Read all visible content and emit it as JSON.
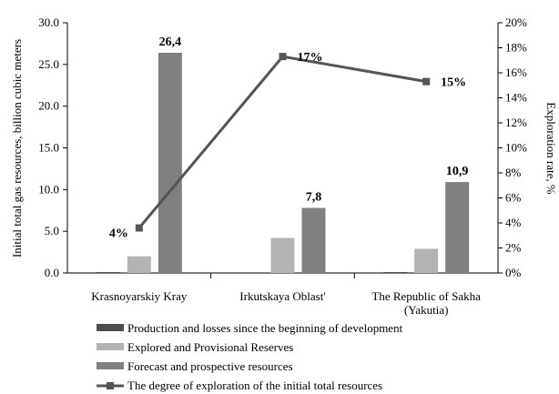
{
  "chart_data": {
    "type": "bar+line",
    "categories": [
      "Krasnoyarskiy Kray",
      "Irkutskaya Oblast'",
      "The Republic of Sakha (Yakutia)"
    ],
    "ylabel": "Initial total gas resources, billion cubic meters",
    "y2label": "Exploration rate, %",
    "ylim": [
      0,
      30
    ],
    "y_ticks": [
      "0.0",
      "5.0",
      "10.0",
      "15.0",
      "20.0",
      "25.0",
      "30.0"
    ],
    "y2lim": [
      0,
      20
    ],
    "y2_ticks": [
      "0%",
      "2%",
      "4%",
      "6%",
      "8%",
      "10%",
      "12%",
      "14%",
      "16%",
      "18%",
      "20%"
    ],
    "series": [
      {
        "name": "Production and losses since the beginning of development",
        "kind": "bar",
        "color": "#4d4d4d",
        "values": [
          0.1,
          0.0,
          0.1
        ],
        "labels": [
          "",
          "",
          ""
        ]
      },
      {
        "name": "Explored and Provisional Reserves",
        "kind": "bar",
        "color": "#b3b3b3",
        "values": [
          2.0,
          4.2,
          2.9
        ],
        "labels": [
          "",
          "",
          ""
        ]
      },
      {
        "name": "Forecast and prospective resources",
        "kind": "bar",
        "color": "#808080",
        "values": [
          26.4,
          7.8,
          10.9
        ],
        "labels": [
          "26,4",
          "7,8",
          "10,9"
        ]
      },
      {
        "name": "The degree of exploration of the initial total resources",
        "kind": "line",
        "axis": "y2",
        "color": "#555555",
        "values": [
          3.6,
          17.3,
          15.3
        ],
        "labels": [
          "4%",
          "17%",
          "15%"
        ]
      }
    ],
    "legend_position": "bottom"
  }
}
